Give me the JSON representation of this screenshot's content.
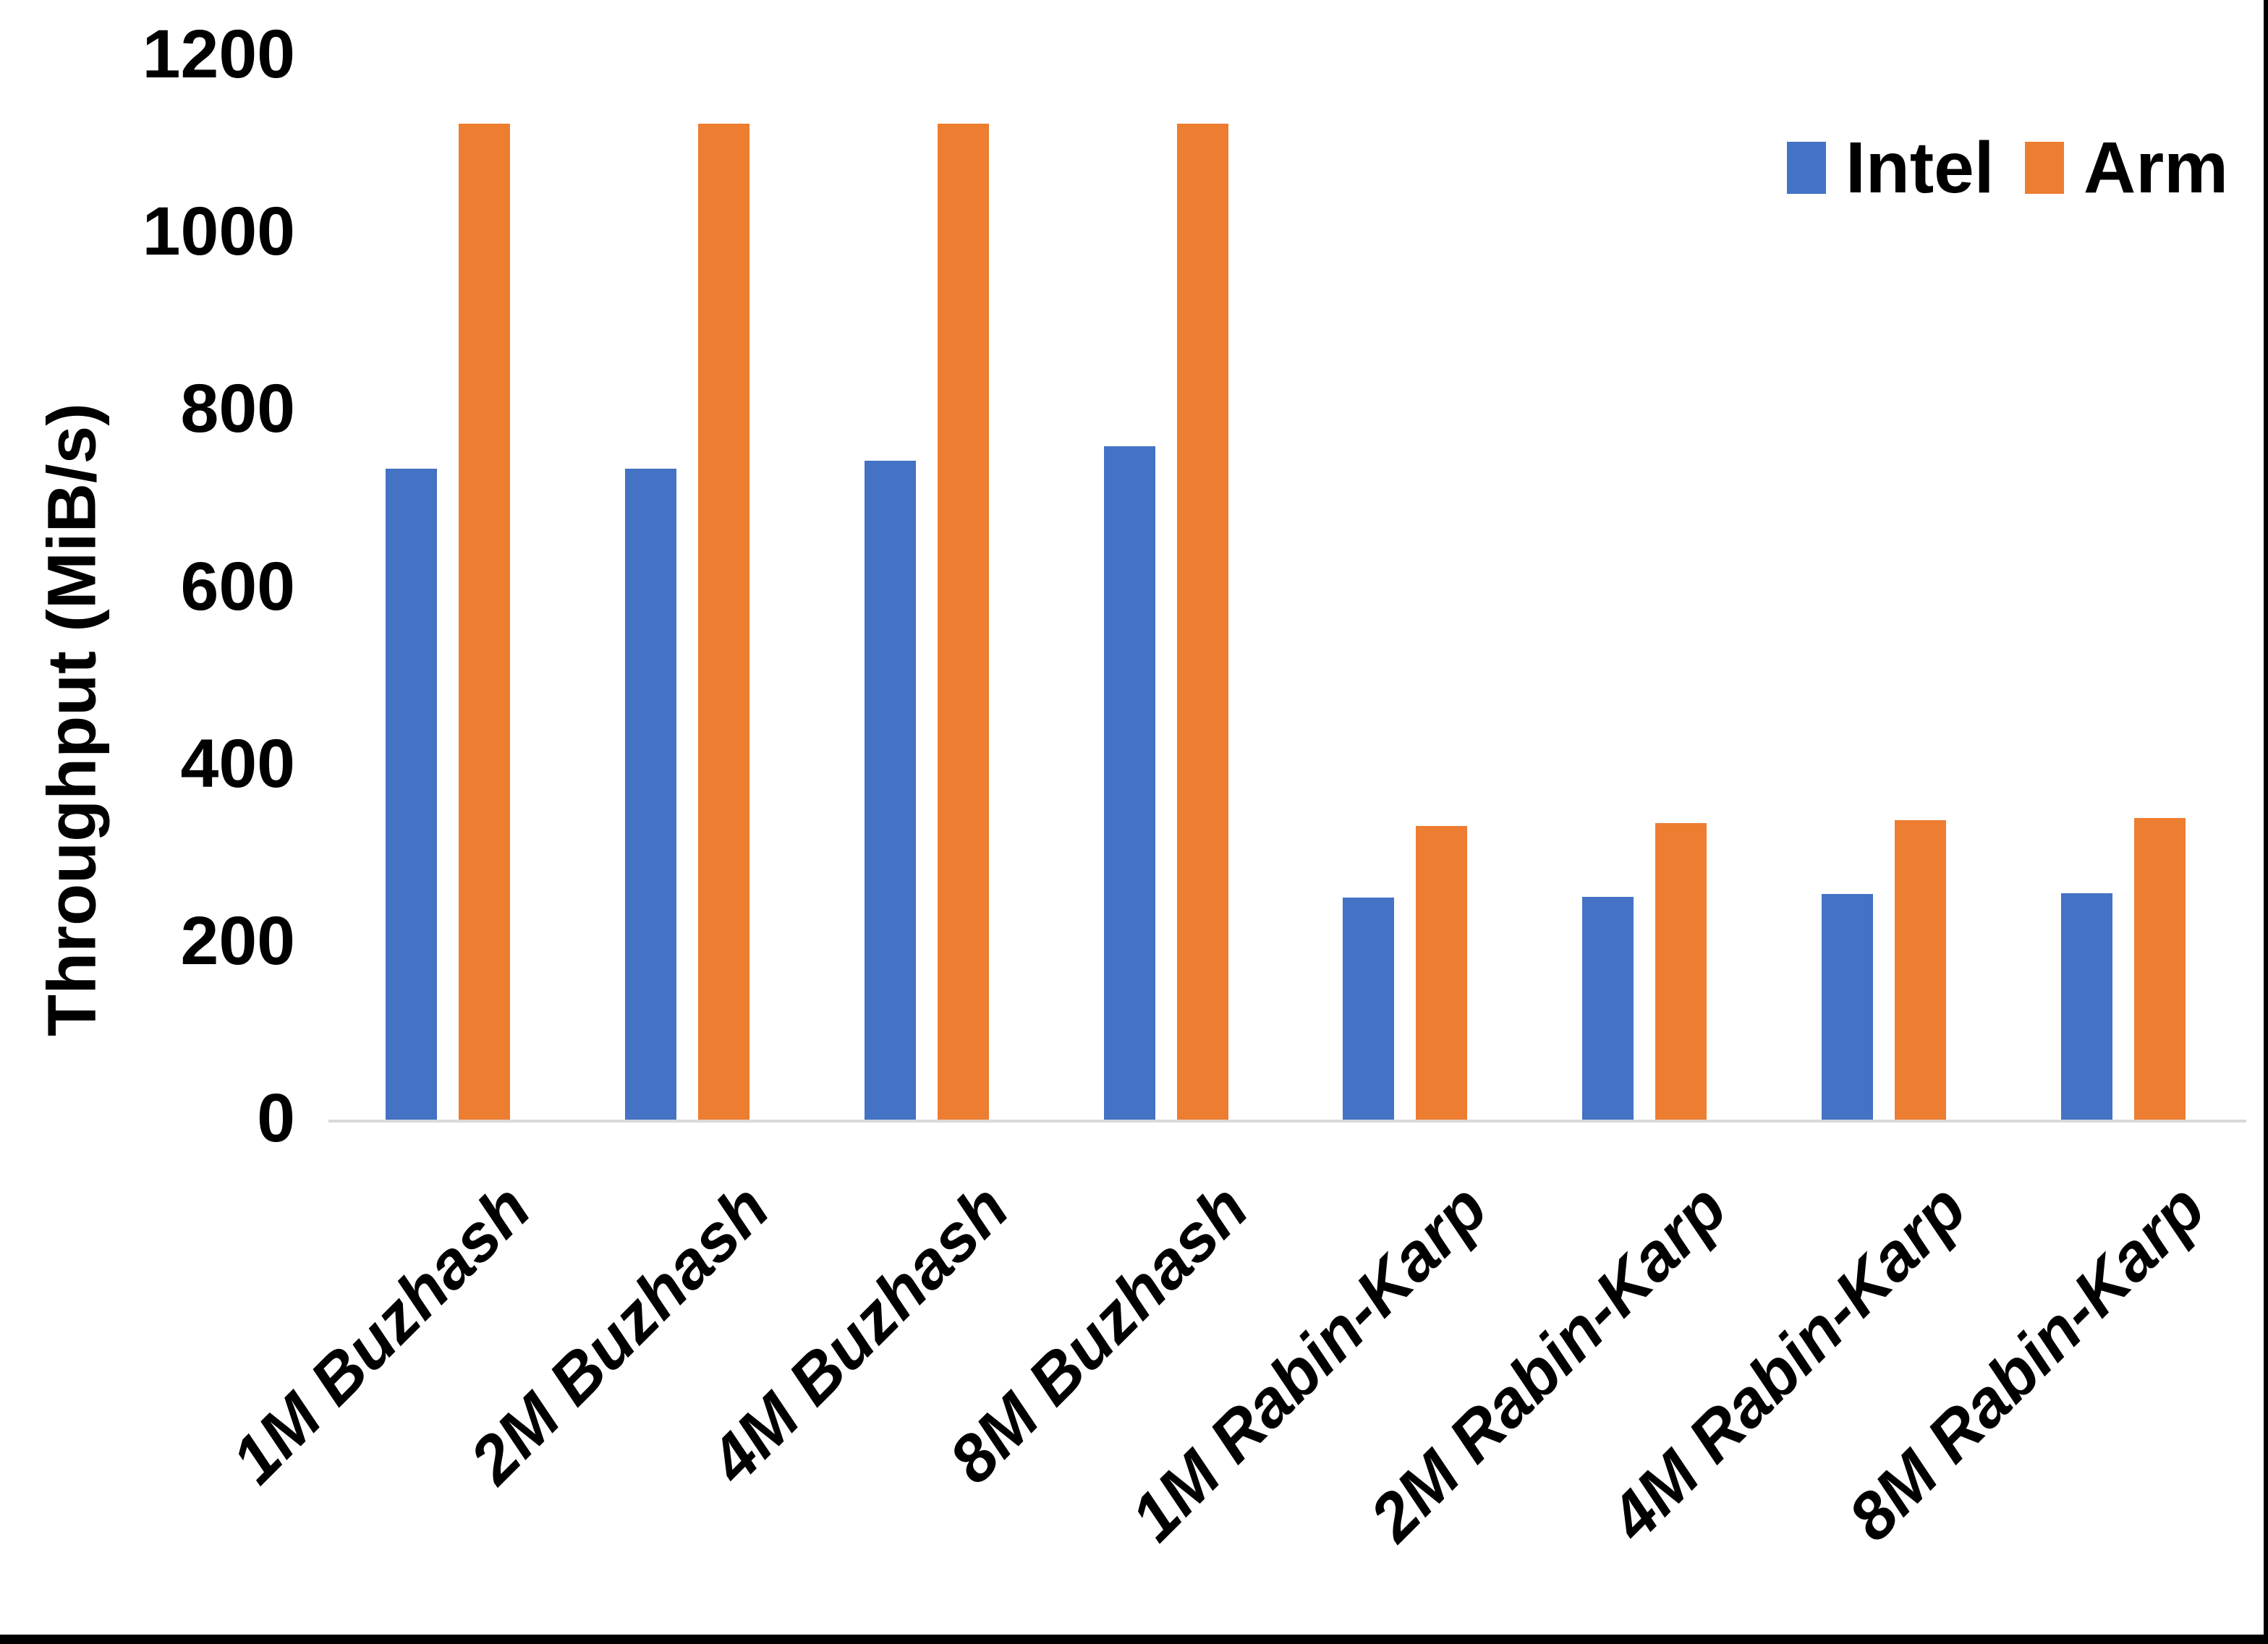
{
  "chart_data": {
    "type": "bar",
    "title": "",
    "xlabel": "",
    "ylabel": "Throughput (MiB/s)",
    "ylim": [
      0,
      1200
    ],
    "yticks": [
      1200,
      1000,
      800,
      600,
      400,
      200,
      0
    ],
    "grid": false,
    "legend_position": "top-right",
    "categories": [
      "1M Buzhash",
      "2M Buzhash",
      "4M Buzhash",
      "8M Buzhash",
      "1M Rabin-Karp",
      "2M Rabin-Karp",
      "4M Rabin-Karp",
      "8M Rabin-Karp"
    ],
    "series": [
      {
        "name": "Intel",
        "color": "#4472C4",
        "values": [
          737,
          737,
          746,
          762,
          253,
          254,
          257,
          258
        ]
      },
      {
        "name": "Arm",
        "color": "#ED7D31",
        "values": [
          1126,
          1126,
          1126,
          1126,
          334,
          337,
          340,
          343
        ]
      }
    ]
  },
  "colors": {
    "axis_line": "#D9D9D9",
    "text": "#000000",
    "frame_border": "#000000",
    "background": "#FFFFFF"
  }
}
